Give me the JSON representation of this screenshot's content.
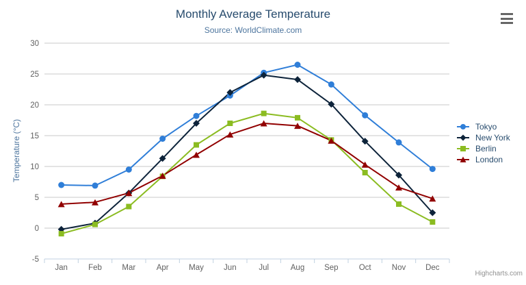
{
  "header": {
    "title": "Monthly Average Temperature",
    "subtitle": "Source: WorldClimate.com"
  },
  "chart_data": {
    "type": "line",
    "title": "Monthly Average Temperature",
    "subtitle": "Source: WorldClimate.com",
    "categories": [
      "Jan",
      "Feb",
      "Mar",
      "Apr",
      "May",
      "Jun",
      "Jul",
      "Aug",
      "Sep",
      "Oct",
      "Nov",
      "Dec"
    ],
    "series": [
      {
        "name": "Tokyo",
        "color": "#2f7ed8",
        "marker": "circle",
        "values": [
          7.0,
          6.9,
          9.5,
          14.5,
          18.2,
          21.5,
          25.2,
          26.5,
          23.3,
          18.3,
          13.9,
          9.6
        ]
      },
      {
        "name": "New York",
        "color": "#0d233a",
        "marker": "diamond",
        "values": [
          -0.2,
          0.8,
          5.7,
          11.3,
          17.0,
          22.0,
          24.8,
          24.1,
          20.1,
          14.1,
          8.6,
          2.5
        ]
      },
      {
        "name": "Berlin",
        "color": "#8bbc21",
        "marker": "square",
        "values": [
          -0.9,
          0.6,
          3.5,
          8.4,
          13.5,
          17.0,
          18.6,
          17.9,
          14.3,
          9.0,
          3.9,
          1.0
        ]
      },
      {
        "name": "London",
        "color": "#910000",
        "marker": "triangle",
        "values": [
          3.9,
          4.2,
          5.7,
          8.5,
          11.9,
          15.2,
          17.0,
          16.6,
          14.2,
          10.3,
          6.6,
          4.8
        ]
      }
    ],
    "xlabel": "",
    "ylabel": "Temperature (°C)",
    "ylim": [
      -5,
      30
    ],
    "yticks": [
      -5,
      0,
      5,
      10,
      15,
      20,
      25,
      30
    ],
    "grid": true,
    "legend_position": "right"
  },
  "credit": {
    "label": "Highcharts.com"
  },
  "theme": {
    "background": "#ffffff",
    "title_color": "#274b6d",
    "subtitle_color": "#4d759e",
    "axis_label_color": "#606060",
    "axis_title_color": "#4d759e",
    "legend_text_color": "#274b6d",
    "grid_color": "#c8c8c8",
    "axis_line_color": "#c0d0e0",
    "credit_color": "#909090",
    "menu_icon_color": "#666666"
  }
}
